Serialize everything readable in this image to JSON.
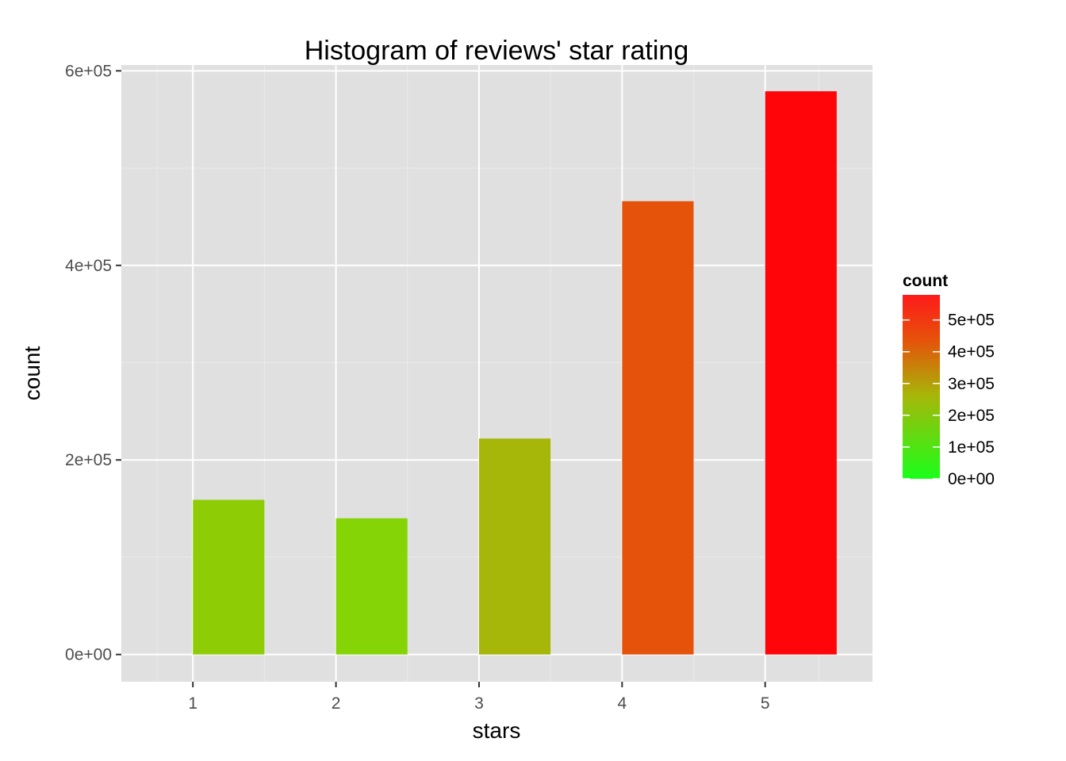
{
  "chart_data": {
    "type": "bar",
    "title": "Histogram of reviews' star rating",
    "xlabel": "stars",
    "ylabel": "count",
    "categories": [
      1,
      2,
      3,
      4,
      5
    ],
    "values": [
      159000,
      140000,
      222000,
      466000,
      579000
    ],
    "bar_range": [
      [
        1,
        1.5
      ],
      [
        2,
        2.5
      ],
      [
        3,
        3.5
      ],
      [
        4,
        4.5
      ],
      [
        5,
        5.5
      ]
    ],
    "xlim": [
      0.5,
      5.75
    ],
    "ylim": [
      -28000,
      606000
    ],
    "x_ticks": [
      "1",
      "2",
      "3",
      "4",
      "5"
    ],
    "y_ticks": [
      {
        "value": 0,
        "label": "0e+00"
      },
      {
        "value": 200000,
        "label": "2e+05"
      },
      {
        "value": 400000,
        "label": "4e+05"
      },
      {
        "value": 600000,
        "label": "6e+05"
      }
    ],
    "grid": true,
    "legend": {
      "title": "count",
      "placement": "right",
      "scale": "continuous color (green → red)",
      "low_color": "#1aff1a",
      "high_color": "#ff1a1a",
      "limits": [
        0,
        579000
      ],
      "breaks": [
        {
          "value": 0,
          "label": "0e+00"
        },
        {
          "value": 100000,
          "label": "1e+05"
        },
        {
          "value": 200000,
          "label": "2e+05"
        },
        {
          "value": 300000,
          "label": "3e+05"
        },
        {
          "value": 400000,
          "label": "4e+05"
        },
        {
          "value": 500000,
          "label": "5e+05"
        }
      ]
    },
    "bar_colors": [
      "#8ecd05",
      "#85d406",
      "#a6b709",
      "#e5530a",
      "#ff0509"
    ],
    "colors": {
      "panel_bg": "#e0e0e0",
      "grid_major": "#ffffff",
      "grid_minor": "#ebebeb"
    }
  }
}
